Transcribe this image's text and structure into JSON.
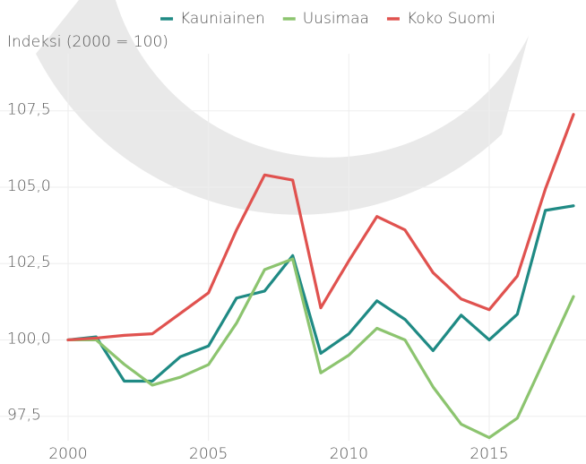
{
  "chart_data": {
    "type": "line",
    "y_label": "Indeksi (2000 = 100)",
    "x": [
      2000,
      2001,
      2002,
      2003,
      2004,
      2005,
      2006,
      2007,
      2008,
      2009,
      2010,
      2011,
      2012,
      2013,
      2014,
      2015,
      2016,
      2017,
      2018
    ],
    "series": [
      {
        "name": "Kauniainen",
        "color": "#1f8a84",
        "values": [
          100,
          100.1,
          98.65,
          98.65,
          99.45,
          99.8,
          101.37,
          101.6,
          102.76,
          99.56,
          100.2,
          101.28,
          100.67,
          99.65,
          100.81,
          100,
          100.84,
          104.24,
          104.39
        ]
      },
      {
        "name": "Uusimaa",
        "color": "#8cc46f",
        "values": [
          100,
          100,
          99.2,
          98.52,
          98.78,
          99.19,
          100.55,
          102.3,
          102.65,
          98.92,
          99.5,
          100.38,
          100,
          98.46,
          97.24,
          96.8,
          97.44,
          99.42,
          101.42
        ]
      },
      {
        "name": "Koko Suomi",
        "color": "#e0524f",
        "values": [
          100,
          100.06,
          100.15,
          100.2,
          100.87,
          101.54,
          103.6,
          105.4,
          105.23,
          101.05,
          102.59,
          104.04,
          103.6,
          102.2,
          101.34,
          100.99,
          102.09,
          104.94,
          107.38
        ]
      }
    ],
    "xlim": [
      2000,
      2018
    ],
    "xticks": [
      2000,
      2005,
      2010,
      2015
    ],
    "ylim": [
      96.7,
      108.4
    ],
    "yticks": [
      {
        "value": 97.5,
        "label": "97,5"
      },
      {
        "value": 100,
        "label": "100,0"
      },
      {
        "value": 102.5,
        "label": "102,5"
      },
      {
        "value": 105,
        "label": "105,0"
      },
      {
        "value": 107.5,
        "label": "107,5"
      }
    ],
    "grid": true
  }
}
